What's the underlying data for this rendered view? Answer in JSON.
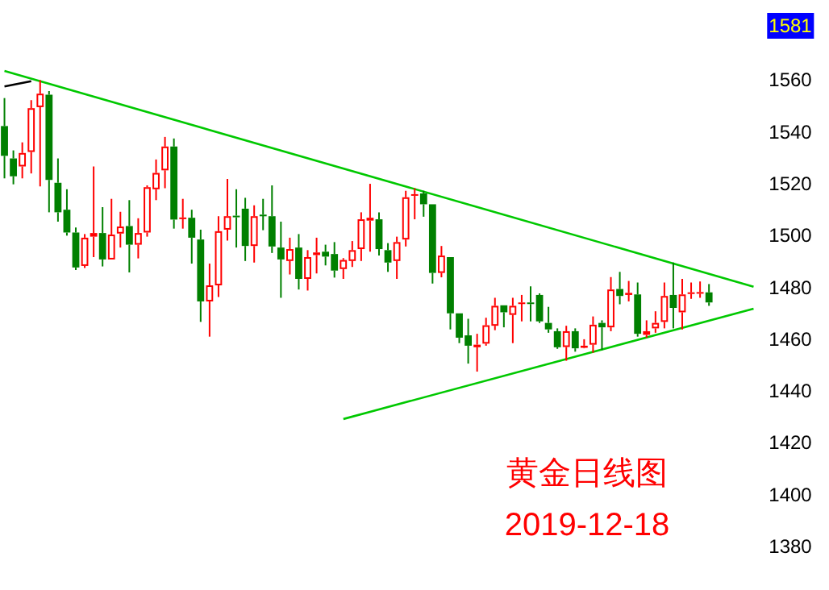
{
  "chart_data": {
    "type": "candlestick",
    "categories": [
      null,
      null,
      null,
      null,
      null,
      null,
      null,
      null,
      null,
      null,
      null,
      null,
      null,
      null,
      null,
      null,
      null,
      null,
      null,
      null,
      null,
      null,
      null,
      null,
      null,
      null,
      null,
      null,
      null,
      null,
      null,
      null,
      null,
      null,
      null,
      null,
      null,
      null,
      null,
      null,
      null,
      null,
      null,
      null,
      null,
      null,
      null,
      null,
      null,
      null,
      null,
      null,
      null,
      null,
      null,
      null,
      null,
      null,
      null,
      null,
      null,
      null,
      null,
      null,
      null,
      null,
      null,
      null,
      null,
      null,
      null,
      null,
      null,
      null,
      null,
      null,
      null,
      null,
      null,
      null,
      null,
      null,
      null,
      null,
      null
    ],
    "ohlc": [
      [
        1542.3,
        1553.1,
        1522.1,
        1530.8
      ],
      [
        1529.8,
        1532.9,
        1519.8,
        1522.9
      ],
      [
        1526.7,
        1536.0,
        1522.1,
        1531.9
      ],
      [
        1532.3,
        1552.3,
        1524.0,
        1549.2
      ],
      [
        1549.6,
        1560.0,
        1519.0,
        1554.8
      ],
      [
        1554.4,
        1555.8,
        1509.0,
        1521.5
      ],
      [
        1520.4,
        1529.8,
        1505.4,
        1509.0
      ],
      [
        1510.0,
        1517.9,
        1500.0,
        1501.2
      ],
      [
        1501.2,
        1503.1,
        1486.7,
        1487.7
      ],
      [
        1488.3,
        1500.6,
        1487.5,
        1499.2
      ],
      [
        1499.6,
        1526.7,
        1491.7,
        1501.0
      ],
      [
        1501.0,
        1511.0,
        1488.1,
        1490.8
      ],
      [
        1490.8,
        1514.2,
        1490.8,
        1500.4
      ],
      [
        1500.8,
        1509.2,
        1495.4,
        1503.5
      ],
      [
        1503.7,
        1513.7,
        1485.8,
        1496.5
      ],
      [
        1496.5,
        1506.7,
        1491.2,
        1501.0
      ],
      [
        1501.2,
        1519.4,
        1499.6,
        1518.7
      ],
      [
        1517.9,
        1529.4,
        1513.7,
        1524.2
      ],
      [
        1525.2,
        1538.1,
        1518.3,
        1534.4
      ],
      [
        1534.4,
        1537.5,
        1502.7,
        1506.2
      ],
      [
        1506.5,
        1514.2,
        1502.7,
        1507.0
      ],
      [
        1506.9,
        1510.0,
        1489.2,
        1499.2
      ],
      [
        1498.5,
        1502.3,
        1466.7,
        1474.6
      ],
      [
        1474.6,
        1489.2,
        1461.0,
        1480.8
      ],
      [
        1480.8,
        1507.5,
        1476.3,
        1501.7
      ],
      [
        1502.3,
        1521.9,
        1498.1,
        1507.5
      ],
      [
        1507.7,
        1517.9,
        1495.4,
        1507.1
      ],
      [
        1510.4,
        1514.6,
        1490.2,
        1496.0
      ],
      [
        1496.0,
        1511.7,
        1489.6,
        1507.5
      ],
      [
        1508.1,
        1514.2,
        1502.1,
        1507.7
      ],
      [
        1507.5,
        1519.4,
        1493.3,
        1495.8
      ],
      [
        1495.4,
        1505.4,
        1476.0,
        1490.8
      ],
      [
        1490.2,
        1499.2,
        1485.0,
        1494.8
      ],
      [
        1495.4,
        1500.6,
        1479.2,
        1483.3
      ],
      [
        1483.3,
        1494.4,
        1478.8,
        1491.7
      ],
      [
        1492.5,
        1499.2,
        1485.4,
        1493.5
      ],
      [
        1493.8,
        1496.5,
        1488.5,
        1491.9
      ],
      [
        1492.9,
        1497.5,
        1483.8,
        1486.5
      ],
      [
        1487.1,
        1491.3,
        1483.3,
        1490.6
      ],
      [
        1490.2,
        1497.9,
        1487.9,
        1494.4
      ],
      [
        1494.8,
        1509.0,
        1490.2,
        1506.3
      ],
      [
        1505.8,
        1520.0,
        1493.8,
        1506.9
      ],
      [
        1506.3,
        1509.0,
        1492.3,
        1494.8
      ],
      [
        1494.4,
        1497.1,
        1486.0,
        1489.6
      ],
      [
        1490.2,
        1499.6,
        1483.3,
        1497.5
      ],
      [
        1498.5,
        1517.3,
        1495.8,
        1514.8
      ],
      [
        1515.4,
        1518.3,
        1506.3,
        1516.0
      ],
      [
        1516.3,
        1517.3,
        1507.3,
        1512.1
      ],
      [
        1512.1,
        1512.1,
        1481.5,
        1485.6
      ],
      [
        1485.6,
        1496.0,
        1483.9,
        1492.3
      ],
      [
        1491.7,
        1491.7,
        1463.8,
        1470.0
      ],
      [
        1470.0,
        1470.0,
        1458.5,
        1460.6
      ],
      [
        1461.5,
        1467.9,
        1450.6,
        1457.5
      ],
      [
        1456.9,
        1462.1,
        1447.5,
        1457.9
      ],
      [
        1458.3,
        1468.3,
        1457.5,
        1465.4
      ],
      [
        1465.2,
        1476.0,
        1463.5,
        1472.9
      ],
      [
        1473.1,
        1473.1,
        1464.6,
        1470.4
      ],
      [
        1469.4,
        1476.0,
        1458.5,
        1472.9
      ],
      [
        1473.7,
        1477.1,
        1466.9,
        1474.2
      ],
      [
        1474.2,
        1480.4,
        1466.9,
        1473.6
      ],
      [
        1477.1,
        1477.7,
        1466.3,
        1466.9
      ],
      [
        1466.3,
        1472.5,
        1462.5,
        1463.8
      ],
      [
        1463.1,
        1464.2,
        1456.3,
        1456.9
      ],
      [
        1457.0,
        1465.2,
        1451.7,
        1463.1
      ],
      [
        1463.1,
        1464.2,
        1455.2,
        1456.5
      ],
      [
        1456.7,
        1460.0,
        1456.5,
        1457.5
      ],
      [
        1457.9,
        1468.8,
        1454.8,
        1465.6
      ],
      [
        1466.3,
        1467.3,
        1455.8,
        1464.6
      ],
      [
        1464.6,
        1484.0,
        1463.1,
        1479.2
      ],
      [
        1479.4,
        1486.0,
        1473.5,
        1476.7
      ],
      [
        1477.1,
        1482.5,
        1474.6,
        1477.9
      ],
      [
        1477.3,
        1481.9,
        1461.0,
        1462.1
      ],
      [
        1461.7,
        1467.3,
        1460.6,
        1463.1
      ],
      [
        1464.2,
        1470.8,
        1462.5,
        1466.3
      ],
      [
        1466.7,
        1481.9,
        1464.2,
        1476.7
      ],
      [
        1477.1,
        1489.6,
        1464.2,
        1472.1
      ],
      [
        1470.4,
        1483.3,
        1463.8,
        1477.3
      ],
      [
        1477.5,
        1481.9,
        1475.6,
        1478.1
      ],
      [
        1477.6,
        1482.3,
        1476.0,
        1478.2
      ],
      [
        1478.1,
        1481.3,
        1472.9,
        1474.2
      ],
      null,
      null,
      null,
      null,
      null
    ],
    "colors": [
      "#008000",
      "#008000",
      "#ff0000",
      "#ff0000",
      "#ff0000",
      "#008000",
      "#008000",
      "#008000",
      "#008000",
      "#ff0000",
      "#ff0000",
      "#008000",
      "#ff0000",
      "#ff0000",
      "#008000",
      "#ff0000",
      "#ff0000",
      "#ff0000",
      "#ff0000",
      "#008000",
      "#ff0000",
      "#008000",
      "#008000",
      "#ff0000",
      "#ff0000",
      "#ff0000",
      "#008000",
      "#008000",
      "#ff0000",
      "#008000",
      "#008000",
      "#008000",
      "#ff0000",
      "#008000",
      "#ff0000",
      "#ff0000",
      "#008000",
      "#008000",
      "#ff0000",
      "#ff0000",
      "#ff0000",
      "#ff0000",
      "#008000",
      "#008000",
      "#ff0000",
      "#ff0000",
      "#ff0000",
      "#008000",
      "#008000",
      "#ff0000",
      "#008000",
      "#008000",
      "#008000",
      "#ff0000",
      "#ff0000",
      "#ff0000",
      "#008000",
      "#ff0000",
      "#ff0000",
      "#008000",
      "#008000",
      "#008000",
      "#008000",
      "#ff0000",
      "#008000",
      "#ff0000",
      "#ff0000",
      "#008000",
      "#ff0000",
      "#008000",
      "#ff0000",
      "#008000",
      "#ff0000",
      "#ff0000",
      "#ff0000",
      "#008000",
      "#ff0000",
      "#ff0000",
      "#ff0000",
      "#008000",
      null,
      null,
      null,
      null,
      null
    ],
    "series": [
      {
        "type": "line",
        "color": "#00c800",
        "values": [
          1563.6,
          null,
          null,
          null,
          null,
          null,
          null,
          null,
          null,
          null,
          null,
          null,
          null,
          null,
          null,
          null,
          null,
          null,
          null,
          null,
          null,
          null,
          null,
          null,
          null,
          null,
          null,
          null,
          null,
          null,
          null,
          null,
          null,
          null,
          null,
          null,
          null,
          null,
          null,
          null,
          null,
          null,
          null,
          null,
          null,
          null,
          null,
          null,
          null,
          null,
          null,
          null,
          null,
          null,
          null,
          null,
          null,
          null,
          null,
          null,
          null,
          null,
          null,
          null,
          null,
          null,
          null,
          null,
          null,
          null,
          null,
          null,
          null,
          null,
          null,
          null,
          null,
          null,
          null,
          null,
          null,
          null,
          null,
          null,
          1480.3
        ]
      },
      {
        "type": "line",
        "color": "#00c800",
        "values": [
          null,
          null,
          null,
          null,
          null,
          null,
          null,
          null,
          null,
          null,
          null,
          null,
          null,
          null,
          null,
          null,
          null,
          null,
          null,
          null,
          null,
          null,
          null,
          null,
          null,
          null,
          null,
          null,
          null,
          null,
          null,
          null,
          null,
          null,
          null,
          null,
          null,
          null,
          1429.2,
          null,
          null,
          null,
          null,
          null,
          null,
          null,
          null,
          null,
          null,
          null,
          null,
          null,
          null,
          null,
          null,
          null,
          null,
          null,
          null,
          null,
          null,
          null,
          null,
          null,
          null,
          null,
          null,
          null,
          null,
          null,
          null,
          null,
          null,
          null,
          null,
          null,
          null,
          null,
          null,
          null,
          null,
          null,
          null,
          null,
          1471.8
        ]
      },
      {
        "type": "line",
        "color": "#000000",
        "values": [
          1557.6,
          null,
          null,
          1559.6,
          null,
          null,
          null,
          null,
          null,
          null,
          null,
          null,
          null,
          null,
          null,
          null,
          null,
          null,
          null,
          null,
          null,
          null,
          null,
          null,
          null,
          null,
          null,
          null,
          null,
          null,
          null,
          null,
          null,
          null,
          null,
          null,
          null,
          null,
          null,
          null,
          null,
          null,
          null,
          null,
          null,
          null,
          null,
          null,
          null,
          null,
          null,
          null,
          null,
          null,
          null,
          null,
          null,
          null,
          null,
          null,
          null,
          null,
          null,
          null,
          null,
          null,
          null,
          null,
          null,
          null,
          null,
          null,
          null,
          null,
          null,
          null,
          null,
          null,
          null,
          null,
          null,
          null,
          null,
          null,
          null
        ]
      }
    ],
    "ylim": [
      1380,
      1581
    ],
    "yticks": [
      1380,
      1400,
      1420,
      1440,
      1460,
      1480,
      1500,
      1520,
      1540,
      1560,
      {
        "value": 1581,
        "label": "1581"
      }
    ],
    "tick_labels": "y",
    "annotations": [
      "黄金日线图",
      "2019-12-18"
    ]
  }
}
